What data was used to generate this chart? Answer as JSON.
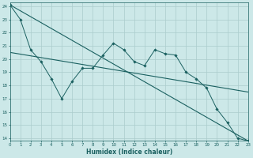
{
  "xlabel": "Humidex (Indice chaleur)",
  "bg_color": "#cce8e8",
  "grid_color": "#aacccc",
  "line_color": "#1a6060",
  "xlim": [
    0,
    23
  ],
  "ylim": [
    13.8,
    24.3
  ],
  "xticks": [
    0,
    1,
    2,
    3,
    4,
    5,
    6,
    7,
    8,
    9,
    10,
    11,
    12,
    13,
    14,
    15,
    16,
    17,
    18,
    19,
    20,
    21,
    22,
    23
  ],
  "yticks": [
    14,
    15,
    16,
    17,
    18,
    19,
    20,
    21,
    22,
    23,
    24
  ],
  "line1_x": [
    0,
    23
  ],
  "line1_y": [
    24.1,
    13.8
  ],
  "line2_x": [
    0,
    23
  ],
  "line2_y": [
    20.5,
    17.5
  ],
  "jagged_x": [
    0,
    1,
    2,
    3,
    4,
    5,
    6,
    7,
    8,
    9,
    10,
    11,
    12,
    13,
    14,
    15,
    16,
    17,
    18,
    19,
    20,
    21,
    22,
    23
  ],
  "jagged_y": [
    24.1,
    23.0,
    20.7,
    19.8,
    18.5,
    17.0,
    18.3,
    19.3,
    19.3,
    20.3,
    21.2,
    20.7,
    19.8,
    19.5,
    20.7,
    20.4,
    20.3,
    19.0,
    18.5,
    17.8,
    16.2,
    15.2,
    14.0,
    13.8
  ]
}
